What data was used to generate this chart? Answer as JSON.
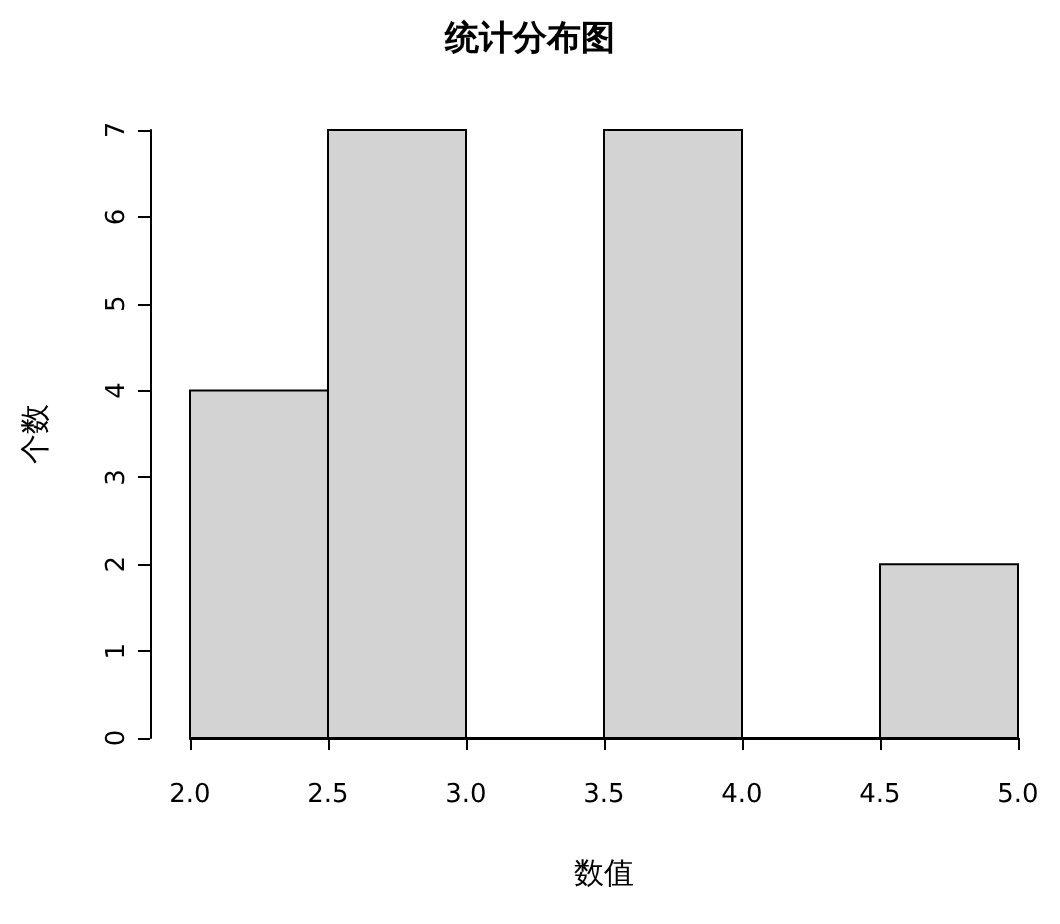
{
  "chart_data": {
    "type": "histogram",
    "title": "统计分布图",
    "xlabel": "数值",
    "ylabel": "个数",
    "bins": [
      2.0,
      2.5,
      3.0,
      3.5,
      4.0,
      4.5,
      5.0
    ],
    "values": [
      4,
      7,
      0,
      7,
      0,
      2
    ],
    "color": "#d3d3d3",
    "xlim": [
      2,
      5
    ],
    "xticks": [
      {
        "value": 2,
        "label": "2.0"
      },
      {
        "value": 2.5,
        "label": "2.5"
      },
      {
        "value": 3,
        "label": "3.0"
      },
      {
        "value": 3.5,
        "label": "3.5"
      },
      {
        "value": 4,
        "label": "4.0"
      },
      {
        "value": 4.5,
        "label": "4.5"
      },
      {
        "value": 5,
        "label": "5.0"
      }
    ],
    "ylim": [
      0,
      7
    ],
    "yticks": [
      0,
      1,
      2,
      3,
      4,
      5,
      6,
      7
    ],
    "grid": false
  }
}
